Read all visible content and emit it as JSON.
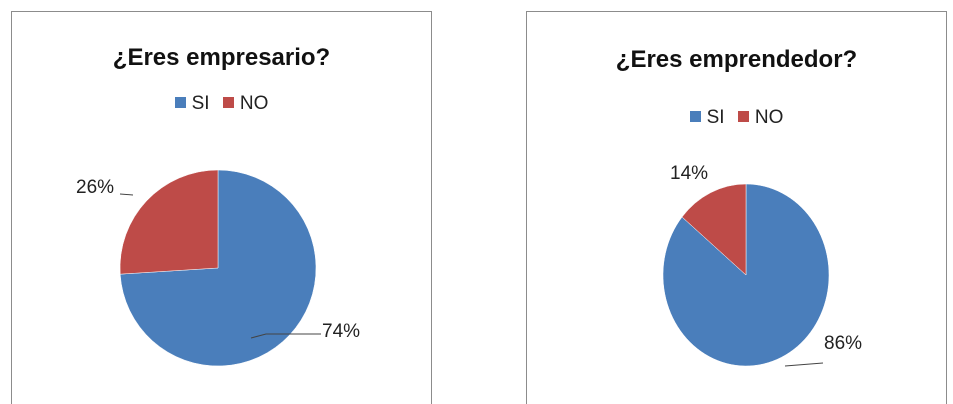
{
  "chart_data": [
    {
      "type": "pie",
      "title": "¿Eres empresario?",
      "categories": [
        "SI",
        "NO"
      ],
      "values": [
        74,
        26
      ],
      "labels": [
        "74%",
        "26%"
      ],
      "colors": [
        "#4a7ebb",
        "#be4b48"
      ],
      "legend_position": "top"
    },
    {
      "type": "pie",
      "title": "¿Eres emprendedor?",
      "categories": [
        "SI",
        "NO"
      ],
      "values": [
        86,
        14
      ],
      "labels": [
        "86%",
        "14%"
      ],
      "colors": [
        "#4a7ebb",
        "#be4b48"
      ],
      "legend_position": "top"
    }
  ]
}
